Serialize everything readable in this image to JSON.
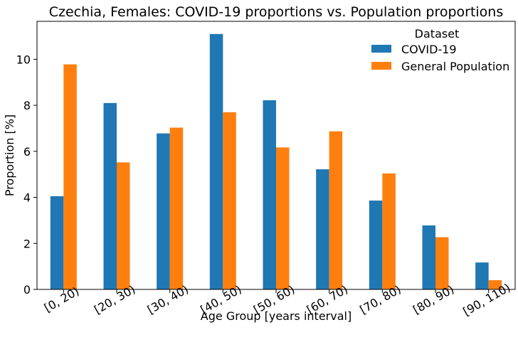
{
  "chart_data": {
    "type": "bar",
    "title": "Czechia, Females: COVID-19 proportions vs. Population proportions",
    "xlabel": "Age Group [years interval]",
    "ylabel": "Proportion [%]",
    "categories": [
      "[0, 20)",
      "[20, 30)",
      "[30, 40)",
      "[40, 50)",
      "[50, 60)",
      "[60, 70)",
      "[70, 80)",
      "[80, 90)",
      "[90, 110)"
    ],
    "series": [
      {
        "name": "COVID-19",
        "color": "#1f77b4",
        "values": [
          4.05,
          8.1,
          6.78,
          11.1,
          8.22,
          5.22,
          3.86,
          2.78,
          1.17
        ]
      },
      {
        "name": "General Population",
        "color": "#ff7f0e",
        "values": [
          9.78,
          5.52,
          7.03,
          7.7,
          6.17,
          6.87,
          5.04,
          2.27,
          0.4
        ]
      }
    ],
    "ylim": [
      0,
      11.65
    ],
    "yticks": [
      "0",
      "2",
      "4",
      "6",
      "8",
      "10"
    ],
    "legend_title": "Dataset",
    "legend_position": "top-right",
    "grid": false
  }
}
